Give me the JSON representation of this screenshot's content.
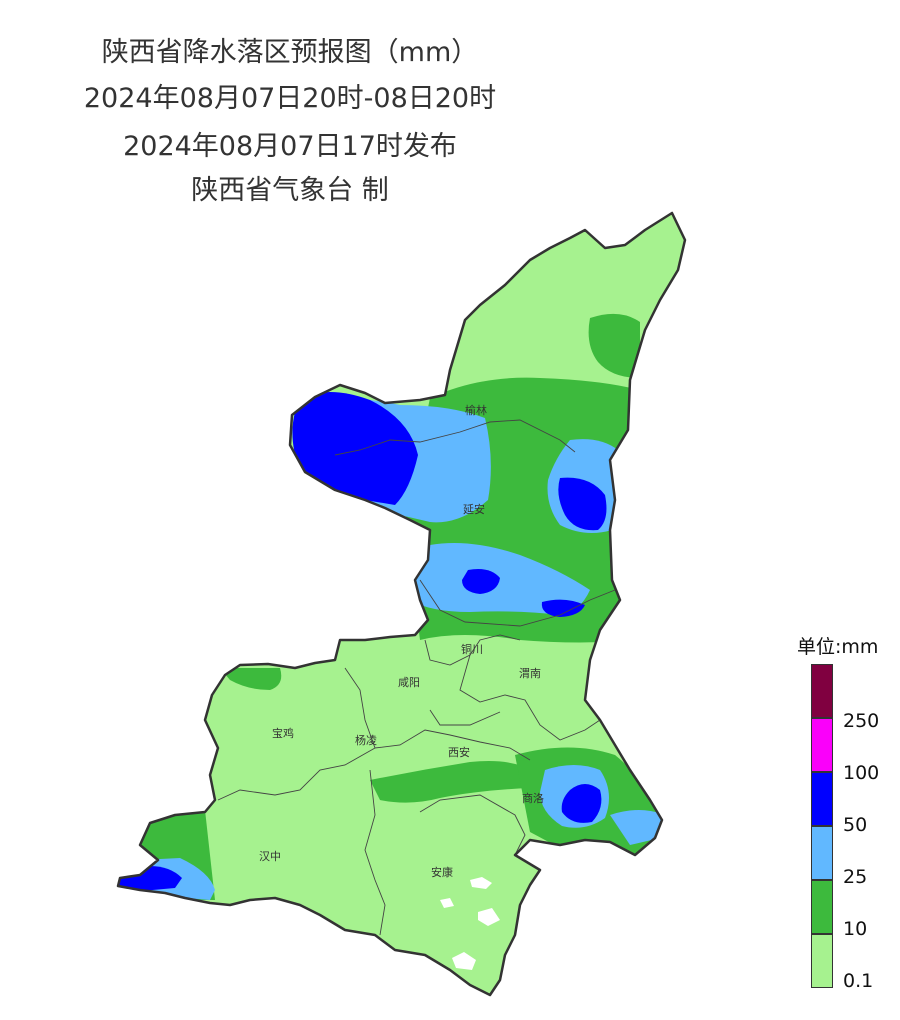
{
  "title": "陕西省降水落区预报图（mm）",
  "period": "2024年08月07日20时-08日20时",
  "issued": "2024年08月07日17时发布",
  "producer": "陕西省气象台 制",
  "cities": [
    "榆林",
    "延安",
    "铜川",
    "咸阳",
    "渭南",
    "宝鸡",
    "杨凌",
    "西安",
    "商洛",
    "汉中",
    "安康"
  ],
  "legend": {
    "title": "单位:mm",
    "levels": [
      {
        "label": "0.1",
        "color": "#a6f28f"
      },
      {
        "label": "10",
        "color": "#3dba3d"
      },
      {
        "label": "25",
        "color": "#61b8ff"
      },
      {
        "label": "50",
        "color": "#0000ff"
      },
      {
        "label": "100",
        "color": "#fa00fa"
      },
      {
        "label": "250",
        "color": "#800040"
      }
    ]
  }
}
